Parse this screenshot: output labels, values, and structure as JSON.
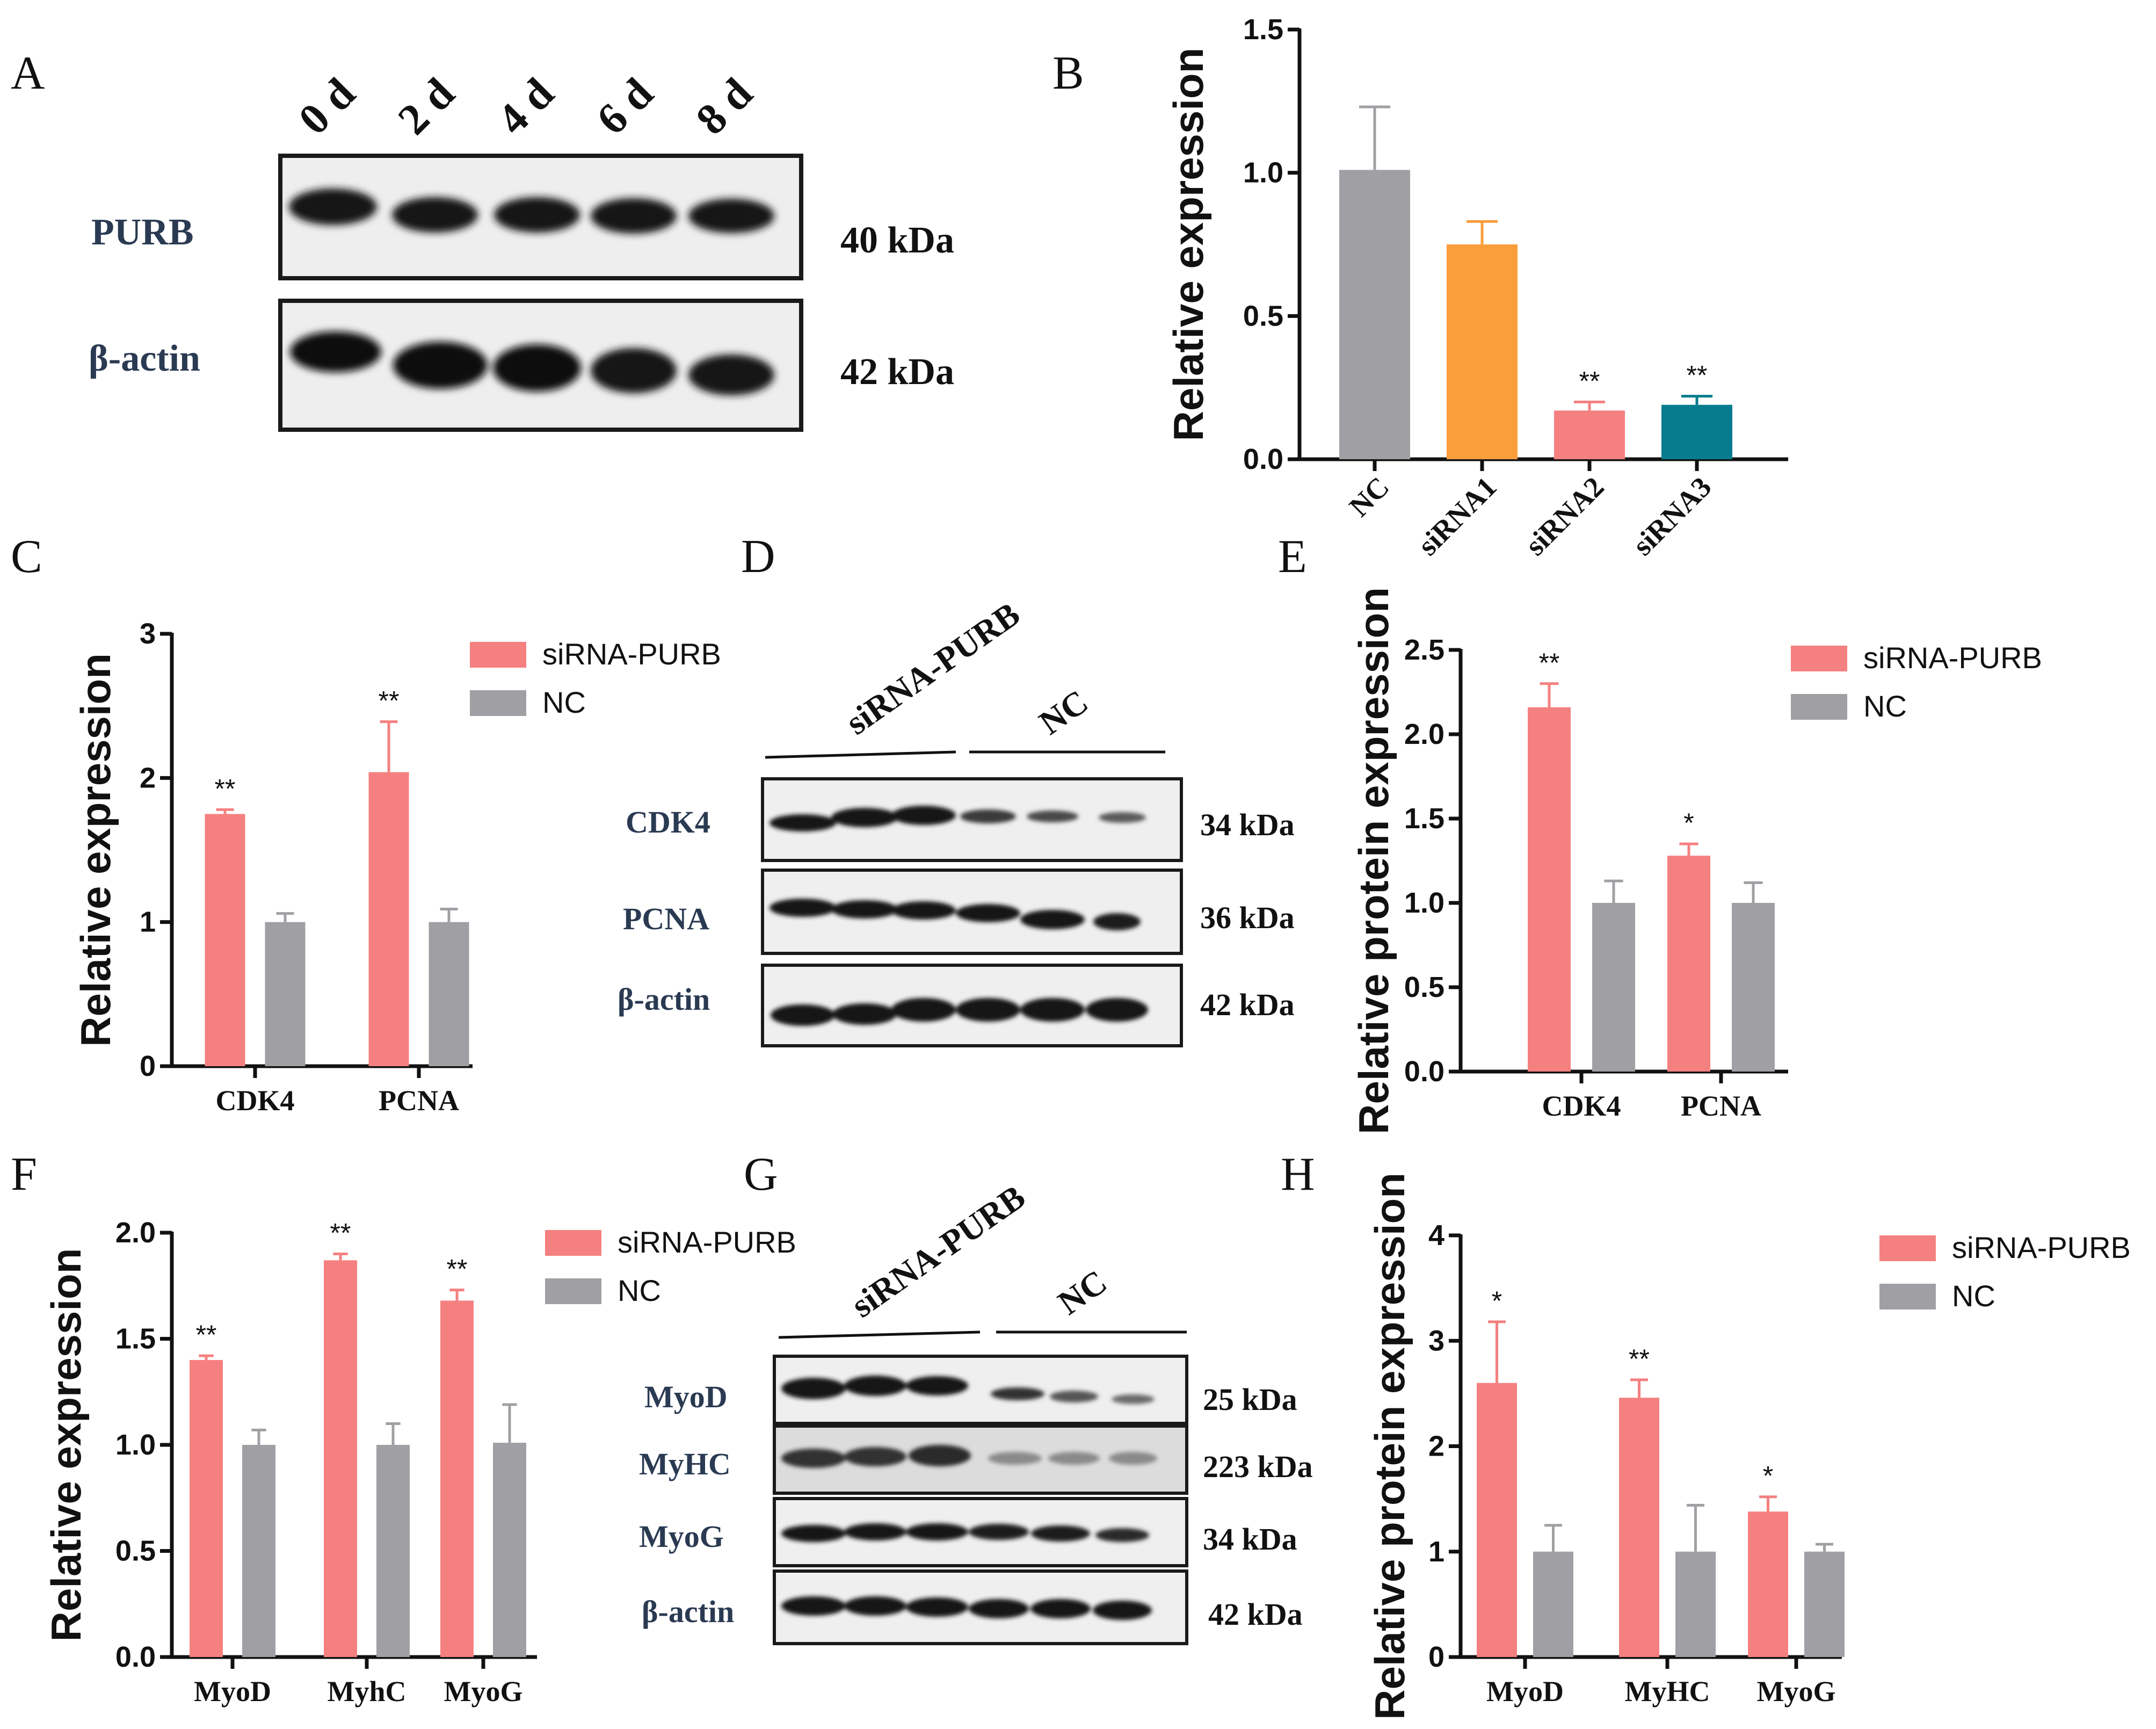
{
  "colors": {
    "siRNA_PURB": "#f58080",
    "NC": "#a0a0a4",
    "siRNA1": "#f99e3b",
    "siRNA2": "#f48080",
    "siRNA3": "#077c8e"
  },
  "panels": {
    "A": {
      "letter": "A",
      "lanes": [
        "0 d",
        "2 d",
        "4 d",
        "6 d",
        "8 d"
      ],
      "rows": [
        {
          "label": "PURB",
          "kda": "40 kDa"
        },
        {
          "label": "β-actin",
          "kda": "42 kDa"
        }
      ]
    },
    "D": {
      "letter": "D",
      "groups": [
        "siRNA-PURB",
        "NC"
      ],
      "rows": [
        {
          "label": "CDK4",
          "kda": "34 kDa"
        },
        {
          "label": "PCNA",
          "kda": "36 kDa"
        },
        {
          "label": "β-actin",
          "kda": "42 kDa"
        }
      ]
    },
    "G": {
      "letter": "G",
      "groups": [
        "siRNA-PURB",
        "NC"
      ],
      "rows": [
        {
          "label": "MyoD",
          "kda": "25 kDa"
        },
        {
          "label": "MyHC",
          "kda": "223 kDa"
        },
        {
          "label": "MyoG",
          "kda": "34 kDa"
        },
        {
          "label": "β-actin",
          "kda": "42 kDa"
        }
      ]
    }
  },
  "chart_data": [
    {
      "panel": "B",
      "type": "bar",
      "ylabel": "Relative expression",
      "ylim": [
        0,
        1.5
      ],
      "yticks": [
        "0.0",
        "0.5",
        "1.0",
        "1.5"
      ],
      "categories": [
        "NC",
        "siRNA1",
        "siRNA2",
        "siRNA3"
      ],
      "values": [
        1.01,
        0.75,
        0.17,
        0.19
      ],
      "errors": [
        0.22,
        0.08,
        0.03,
        0.03
      ],
      "significance": [
        "",
        "",
        "**",
        "**"
      ]
    },
    {
      "panel": "C",
      "type": "bar",
      "ylabel": "Relative expression",
      "ylim": [
        0,
        3
      ],
      "yticks": [
        "0",
        "1",
        "2",
        "3"
      ],
      "categories": [
        "CDK4",
        "PCNA"
      ],
      "series": [
        {
          "name": "siRNA-PURB",
          "values": [
            1.75,
            2.04
          ],
          "errors": [
            0.03,
            0.35
          ],
          "significance": [
            "**",
            "**"
          ]
        },
        {
          "name": "NC",
          "values": [
            1.0,
            1.0
          ],
          "errors": [
            0.06,
            0.09
          ],
          "significance": [
            "",
            ""
          ]
        }
      ],
      "legend": "top-right"
    },
    {
      "panel": "E",
      "type": "bar",
      "ylabel": "Relative protein expression",
      "ylim": [
        0,
        2.5
      ],
      "yticks": [
        "0.0",
        "0.5",
        "1.0",
        "1.5",
        "2.0",
        "2.5"
      ],
      "categories": [
        "CDK4",
        "PCNA"
      ],
      "series": [
        {
          "name": "siRNA-PURB",
          "values": [
            2.16,
            1.28
          ],
          "errors": [
            0.14,
            0.07
          ],
          "significance": [
            "**",
            "*"
          ]
        },
        {
          "name": "NC",
          "values": [
            1.0,
            1.0
          ],
          "errors": [
            0.13,
            0.12
          ],
          "significance": [
            "",
            ""
          ]
        }
      ],
      "legend": "top-right"
    },
    {
      "panel": "F",
      "type": "bar",
      "ylabel": "Relative expression",
      "ylim": [
        0,
        2.0
      ],
      "yticks": [
        "0.0",
        "0.5",
        "1.0",
        "1.5",
        "2.0"
      ],
      "categories": [
        "MyoD",
        "MyhC",
        "MyoG"
      ],
      "series": [
        {
          "name": "siRNA-PURB",
          "values": [
            1.4,
            1.87,
            1.68
          ],
          "errors": [
            0.02,
            0.03,
            0.05
          ],
          "significance": [
            "**",
            "**",
            "**"
          ]
        },
        {
          "name": "NC",
          "values": [
            1.0,
            1.0,
            1.01
          ],
          "errors": [
            0.07,
            0.1,
            0.18
          ],
          "significance": [
            "",
            "",
            ""
          ]
        }
      ],
      "legend": "top-right"
    },
    {
      "panel": "H",
      "type": "bar",
      "ylabel": "Relative protein expression",
      "ylim": [
        0,
        4
      ],
      "yticks": [
        "0",
        "1",
        "2",
        "3",
        "4"
      ],
      "categories": [
        "MyoD",
        "MyHC",
        "MyoG"
      ],
      "series": [
        {
          "name": "siRNA-PURB",
          "values": [
            2.6,
            2.46,
            1.38
          ],
          "errors": [
            0.58,
            0.17,
            0.14
          ],
          "significance": [
            "*",
            "**",
            "*"
          ]
        },
        {
          "name": "NC",
          "values": [
            1.0,
            1.0,
            1.0
          ],
          "errors": [
            0.25,
            0.44,
            0.07
          ],
          "significance": [
            "",
            "",
            ""
          ]
        }
      ],
      "legend": "top-right"
    }
  ]
}
